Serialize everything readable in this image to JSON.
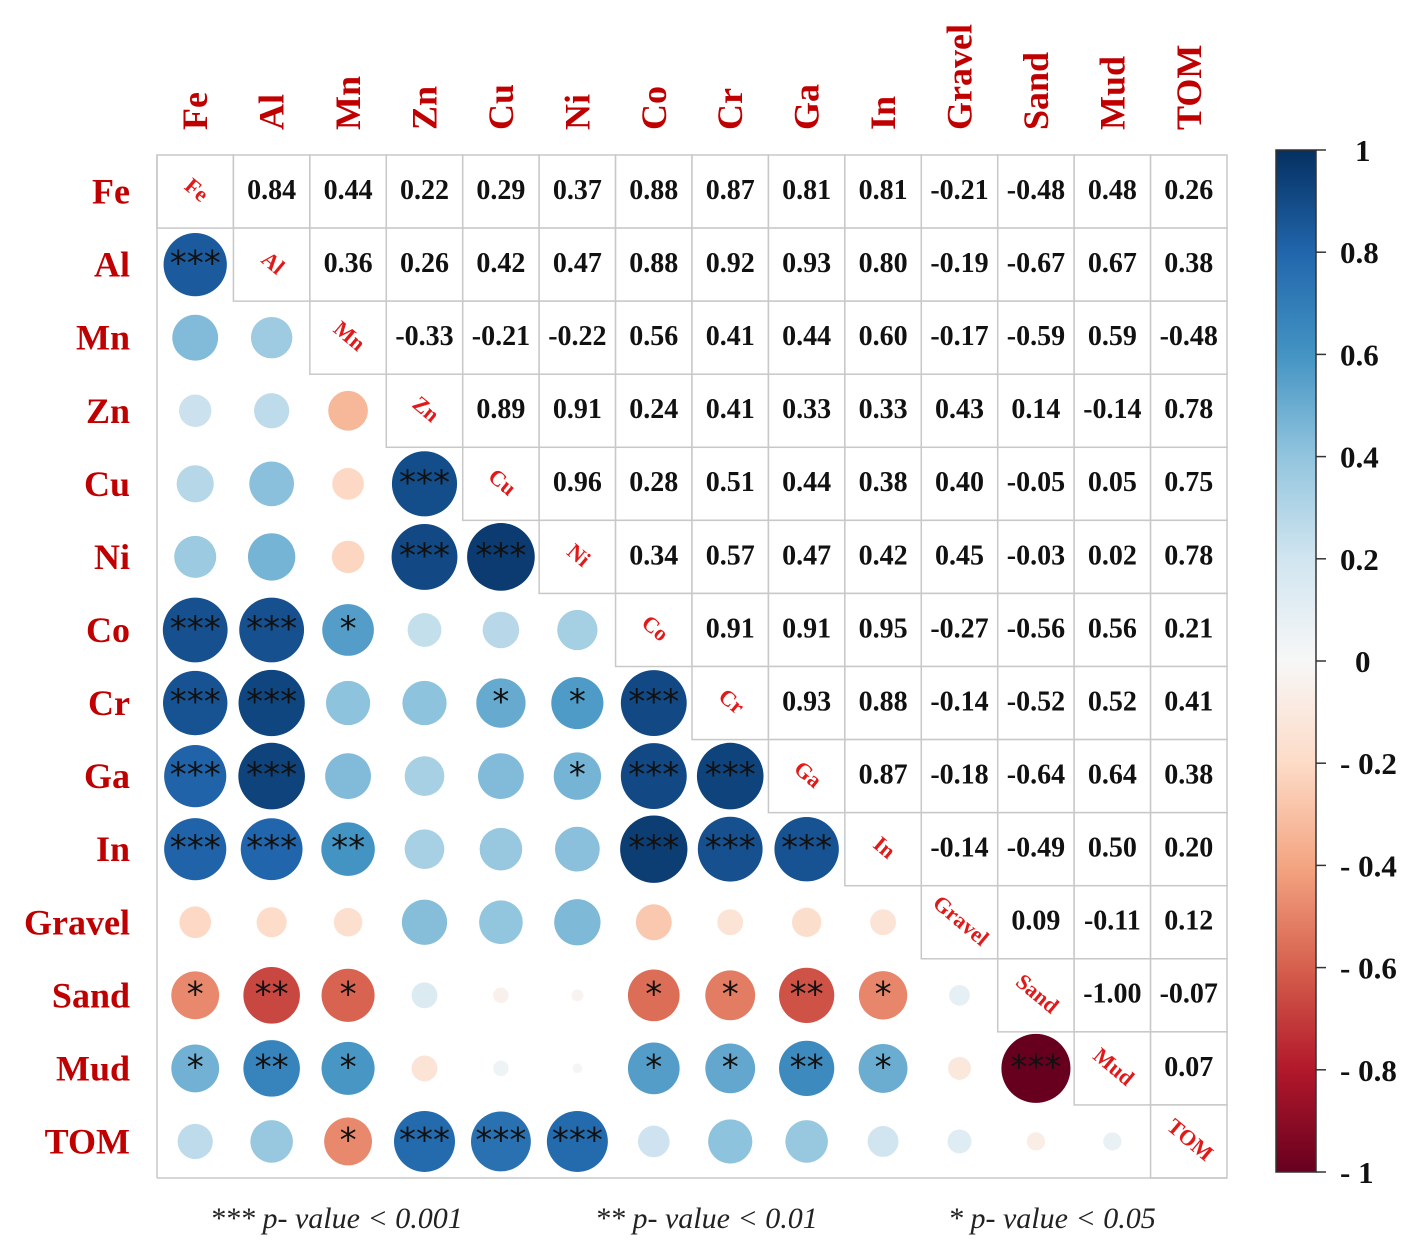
{
  "chart_data": {
    "type": "heatmap",
    "subtype": "correlation-matrix",
    "variables": [
      "Fe",
      "Al",
      "Mn",
      "Zn",
      "Cu",
      "Ni",
      "Co",
      "Cr",
      "Ga",
      "In",
      "Gravel",
      "Sand",
      "Mud",
      "TOM"
    ],
    "correlations": [
      [
        1,
        0.84,
        0.44,
        0.22,
        0.29,
        0.37,
        0.88,
        0.87,
        0.81,
        0.81,
        -0.21,
        -0.48,
        0.48,
        0.26
      ],
      [
        0.84,
        1,
        0.36,
        0.26,
        0.42,
        0.47,
        0.88,
        0.92,
        0.93,
        0.8,
        -0.19,
        -0.67,
        0.67,
        0.38
      ],
      [
        0.44,
        0.36,
        1,
        -0.33,
        -0.21,
        -0.22,
        0.56,
        0.41,
        0.44,
        0.6,
        -0.17,
        -0.59,
        0.59,
        -0.48
      ],
      [
        0.22,
        0.26,
        -0.33,
        1,
        0.89,
        0.91,
        0.24,
        0.41,
        0.33,
        0.33,
        0.43,
        0.14,
        -0.14,
        0.78
      ],
      [
        0.29,
        0.42,
        -0.21,
        0.89,
        1,
        0.96,
        0.28,
        0.51,
        0.44,
        0.38,
        0.4,
        -0.05,
        0.05,
        0.75
      ],
      [
        0.37,
        0.47,
        -0.22,
        0.91,
        0.96,
        1,
        0.34,
        0.57,
        0.47,
        0.42,
        0.45,
        -0.03,
        0.02,
        0.78
      ],
      [
        0.88,
        0.88,
        0.56,
        0.24,
        0.28,
        0.34,
        1,
        0.91,
        0.91,
        0.95,
        -0.27,
        -0.56,
        0.56,
        0.21
      ],
      [
        0.87,
        0.92,
        0.41,
        0.41,
        0.51,
        0.57,
        0.91,
        1,
        0.93,
        0.88,
        -0.14,
        -0.52,
        0.52,
        0.41
      ],
      [
        0.81,
        0.93,
        0.44,
        0.33,
        0.44,
        0.47,
        0.91,
        0.93,
        1,
        0.87,
        -0.18,
        -0.64,
        0.64,
        0.38
      ],
      [
        0.81,
        0.8,
        0.6,
        0.33,
        0.38,
        0.42,
        0.95,
        0.88,
        0.87,
        1,
        -0.14,
        -0.49,
        0.5,
        0.2
      ],
      [
        -0.21,
        -0.19,
        -0.17,
        0.43,
        0.4,
        0.45,
        -0.27,
        -0.14,
        -0.18,
        -0.14,
        1,
        0.09,
        -0.11,
        0.12
      ],
      [
        -0.48,
        -0.67,
        -0.59,
        0.14,
        -0.05,
        -0.03,
        -0.56,
        -0.52,
        -0.64,
        -0.49,
        0.09,
        1,
        -1.0,
        -0.07
      ],
      [
        0.48,
        0.67,
        0.59,
        -0.14,
        0.05,
        0.02,
        0.56,
        0.52,
        0.64,
        0.5,
        -0.11,
        -1.0,
        1,
        0.07
      ],
      [
        0.26,
        0.38,
        -0.48,
        0.78,
        0.75,
        0.78,
        0.21,
        0.41,
        0.38,
        0.2,
        0.12,
        -0.07,
        0.07,
        1
      ]
    ],
    "significance_lower": [
      [
        "",
        "",
        "",
        "",
        "",
        "",
        "",
        "",
        "",
        "",
        "",
        "",
        "",
        ""
      ],
      [
        "***",
        "",
        "",
        "",
        "",
        "",
        "",
        "",
        "",
        "",
        "",
        "",
        "",
        ""
      ],
      [
        "",
        "",
        "",
        "",
        "",
        "",
        "",
        "",
        "",
        "",
        "",
        "",
        "",
        ""
      ],
      [
        "",
        "",
        "",
        "",
        "",
        "",
        "",
        "",
        "",
        "",
        "",
        "",
        "",
        ""
      ],
      [
        "",
        "",
        "",
        "***",
        "",
        "",
        "",
        "",
        "",
        "",
        "",
        "",
        "",
        ""
      ],
      [
        "",
        "",
        "",
        "***",
        "***",
        "",
        "",
        "",
        "",
        "",
        "",
        "",
        "",
        ""
      ],
      [
        "***",
        "***",
        "*",
        "",
        "",
        "",
        "",
        "",
        "",
        "",
        "",
        "",
        "",
        ""
      ],
      [
        "***",
        "***",
        "",
        "",
        "*",
        "*",
        "***",
        "",
        "",
        "",
        "",
        "",
        "",
        ""
      ],
      [
        "***",
        "***",
        "",
        "",
        "",
        "*",
        "***",
        "***",
        "",
        "",
        "",
        "",
        "",
        ""
      ],
      [
        "***",
        "***",
        "**",
        "",
        "",
        "",
        "***",
        "***",
        "***",
        "",
        "",
        "",
        "",
        ""
      ],
      [
        "",
        "",
        "",
        "",
        "",
        "",
        "",
        "",
        "",
        "",
        "",
        "",
        "",
        ""
      ],
      [
        "*",
        "**",
        "*",
        "",
        "",
        "",
        "*",
        "*",
        "**",
        "*",
        "",
        "",
        "",
        ""
      ],
      [
        "*",
        "**",
        "*",
        "",
        "",
        "",
        "*",
        "*",
        "**",
        "*",
        "",
        "***",
        "",
        ""
      ],
      [
        "",
        "",
        "*",
        "***",
        "***",
        "***",
        "",
        "",
        "",
        "",
        "",
        "",
        "",
        ""
      ]
    ],
    "upper_triangle": "numbers",
    "lower_triangle": "circles",
    "colorbar": {
      "range": [
        -1,
        1
      ],
      "ticks": [
        "1",
        "0.8",
        "0.6",
        "0.4",
        "0.2",
        "0",
        "- 0.2",
        "- 0.4",
        "- 0.6",
        "- 0.8",
        "- 1"
      ],
      "tick_values": [
        1,
        0.8,
        0.6,
        0.4,
        0.2,
        0,
        -0.2,
        -0.4,
        -0.6,
        -0.8,
        -1
      ],
      "placement": "right"
    },
    "label_color": "#c00000",
    "legend_notes": [
      {
        "stars": "***",
        "text": "p- value < 0.001"
      },
      {
        "stars": "**",
        "text": "p- value < 0.01"
      },
      {
        "stars": "*",
        "text": "p- value < 0.05"
      }
    ]
  }
}
